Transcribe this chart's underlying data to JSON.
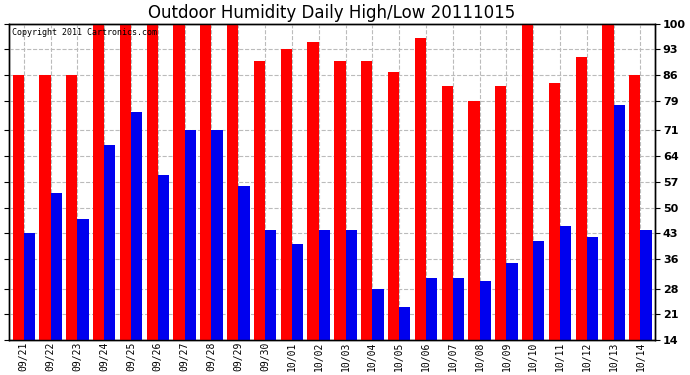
{
  "title": "Outdoor Humidity Daily High/Low 20111015",
  "copyright": "Copyright 2011 Cartronics.com",
  "categories": [
    "09/21",
    "09/22",
    "09/23",
    "09/24",
    "09/25",
    "09/26",
    "09/27",
    "09/28",
    "09/29",
    "09/30",
    "10/01",
    "10/02",
    "10/03",
    "10/04",
    "10/05",
    "10/06",
    "10/07",
    "10/08",
    "10/09",
    "10/10",
    "10/11",
    "10/12",
    "10/13",
    "10/14"
  ],
  "highs": [
    86,
    86,
    86,
    100,
    100,
    100,
    100,
    100,
    100,
    90,
    93,
    95,
    90,
    90,
    87,
    96,
    83,
    79,
    83,
    100,
    84,
    91,
    100,
    86
  ],
  "lows": [
    43,
    54,
    47,
    67,
    76,
    59,
    71,
    71,
    56,
    44,
    40,
    44,
    44,
    28,
    23,
    31,
    31,
    30,
    35,
    41,
    45,
    42,
    78,
    44
  ],
  "bar_color_high": "#ff0000",
  "bar_color_low": "#0000ee",
  "bg_color": "#ffffff",
  "grid_color": "#bbbbbb",
  "yticks": [
    14,
    21,
    28,
    36,
    43,
    50,
    57,
    64,
    71,
    79,
    86,
    93,
    100
  ],
  "ymin": 14,
  "ymax": 100,
  "bar_width": 0.42,
  "title_fontsize": 12,
  "tick_fontsize": 7,
  "copyright_fontsize": 6,
  "ylabel_fontsize": 8
}
